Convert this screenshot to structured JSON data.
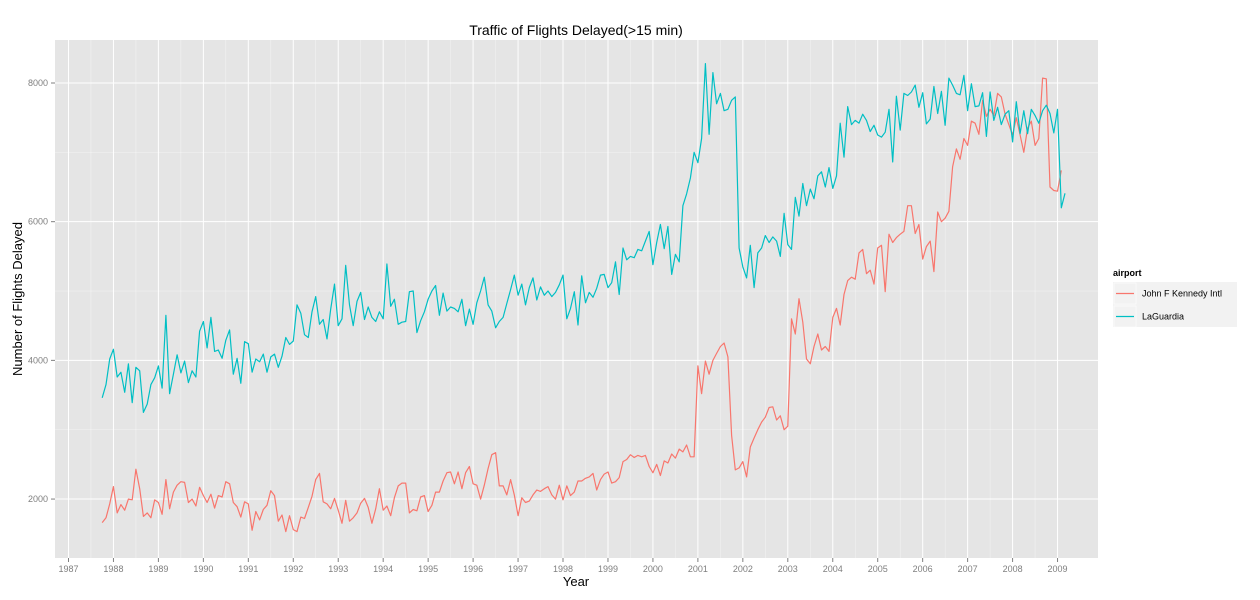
{
  "chart_data": {
    "type": "line",
    "title": "Traffic of Flights Delayed(>15 min)",
    "xlabel": "Year",
    "ylabel": "Number of Flights Delayed",
    "x_ticks": [
      "1987",
      "1988",
      "1989",
      "1990",
      "1991",
      "1992",
      "1993",
      "1994",
      "1995",
      "1996",
      "1997",
      "1998",
      "1999",
      "2000",
      "2001",
      "2002",
      "2003",
      "2004",
      "2005",
      "2006",
      "2007",
      "2008",
      "2009"
    ],
    "y_ticks": [
      2000,
      4000,
      6000,
      8000
    ],
    "xlim": [
      1986.7,
      2009.9
    ],
    "ylim": [
      1150,
      8620
    ],
    "grid": true,
    "legend": {
      "title": "airport",
      "position": "right"
    },
    "colors": {
      "John F Kennedy Intl": "#F8766D",
      "LaGuardia": "#00BFC4",
      "panel": "#E5E5E5",
      "grid": "#FFFFFF"
    },
    "series": [
      {
        "name": "John F Kennedy Intl",
        "start": "1987-10",
        "values": [
          1660,
          1730,
          1930,
          2180,
          1800,
          1920,
          1840,
          2000,
          1990,
          2430,
          2150,
          1750,
          1800,
          1730,
          1990,
          1950,
          1780,
          2280,
          1860,
          2100,
          2200,
          2250,
          2240,
          1950,
          2000,
          1900,
          2170,
          2050,
          1950,
          2070,
          1870,
          2050,
          2030,
          2250,
          2220,
          1950,
          1890,
          1740,
          1960,
          1930,
          1550,
          1820,
          1700,
          1850,
          1910,
          2120,
          2050,
          1680,
          1770,
          1530,
          1760,
          1560,
          1530,
          1740,
          1720,
          1880,
          2040,
          2280,
          2370,
          1960,
          1930,
          1860,
          2010,
          1840,
          1650,
          1980,
          1680,
          1730,
          1800,
          1940,
          2010,
          1880,
          1650,
          1860,
          2150,
          1840,
          1900,
          1760,
          2020,
          2190,
          2230,
          2230,
          1800,
          1850,
          1830,
          2030,
          2050,
          1820,
          1910,
          2100,
          2100,
          2260,
          2380,
          2390,
          2220,
          2390,
          2150,
          2380,
          2470,
          2220,
          2200,
          2000,
          2200,
          2440,
          2640,
          2670,
          2190,
          2190,
          2060,
          2280,
          2060,
          1760,
          2020,
          1950,
          1970,
          2060,
          2130,
          2110,
          2150,
          2180,
          2060,
          2000,
          2200,
          1990,
          2190,
          2050,
          2100,
          2260,
          2260,
          2300,
          2320,
          2370,
          2130,
          2280,
          2360,
          2390,
          2230,
          2250,
          2310,
          2540,
          2570,
          2640,
          2600,
          2630,
          2610,
          2630,
          2470,
          2380,
          2500,
          2340,
          2550,
          2520,
          2650,
          2590,
          2720,
          2680,
          2780,
          2610,
          2610,
          3920,
          3520,
          3990,
          3800,
          4000,
          4100,
          4200,
          4250,
          4050,
          2920,
          2420,
          2450,
          2540,
          2320,
          2750,
          2880,
          3000,
          3110,
          3180,
          3320,
          3330,
          3140,
          3200,
          3000,
          3050,
          4600,
          4380,
          4890,
          4550,
          4020,
          3950,
          4200,
          4380,
          4150,
          4200,
          4130,
          4620,
          4750,
          4510,
          4950,
          5150,
          5200,
          5170,
          5550,
          5600,
          5250,
          5300,
          5100,
          5620,
          5660,
          4990,
          5820,
          5700,
          5770,
          5820,
          5860,
          6230,
          6230,
          5830,
          5960,
          5460,
          5640,
          5720,
          5280,
          6140,
          6000,
          6050,
          6150,
          6790,
          7050,
          6900,
          7200,
          7100,
          7450,
          7420,
          7260,
          7750,
          7520,
          7620,
          7530,
          7850,
          7800,
          7550,
          7400,
          7250,
          7500,
          7250,
          7000,
          7350,
          7450,
          7100,
          7200,
          8070,
          8060,
          6500,
          6450,
          6440,
          6740
        ]
      },
      {
        "name": "LaGuardia",
        "start": "1987-10",
        "values": [
          3460,
          3650,
          4020,
          4160,
          3760,
          3830,
          3540,
          3950,
          3390,
          3900,
          3850,
          3250,
          3370,
          3650,
          3750,
          3920,
          3600,
          4650,
          3520,
          3800,
          4080,
          3820,
          3990,
          3680,
          3850,
          3760,
          4420,
          4560,
          4180,
          4620,
          4130,
          4150,
          4030,
          4290,
          4440,
          3800,
          4030,
          3670,
          4270,
          4240,
          3830,
          4020,
          3980,
          4090,
          3830,
          4050,
          4090,
          3900,
          4060,
          4330,
          4230,
          4280,
          4800,
          4680,
          4370,
          4330,
          4700,
          4920,
          4520,
          4590,
          4310,
          4740,
          5100,
          4500,
          4600,
          5370,
          4800,
          4500,
          4850,
          4980,
          4590,
          4770,
          4620,
          4560,
          4700,
          4600,
          5390,
          4780,
          4880,
          4520,
          4550,
          4560,
          4990,
          5000,
          4400,
          4570,
          4700,
          4880,
          5000,
          5080,
          4650,
          4970,
          4710,
          4770,
          4750,
          4700,
          4880,
          4500,
          4740,
          4520,
          4830,
          5000,
          5200,
          4800,
          4710,
          4470,
          4560,
          4620,
          4820,
          5020,
          5230,
          4940,
          5100,
          4800,
          5050,
          5190,
          4870,
          5060,
          4940,
          5000,
          4920,
          4980,
          5090,
          5230,
          4600,
          4750,
          4990,
          4510,
          5220,
          4830,
          4980,
          4910,
          5040,
          5230,
          5240,
          5050,
          5120,
          5420,
          4950,
          5620,
          5450,
          5500,
          5480,
          5600,
          5580,
          5720,
          5860,
          5380,
          5700,
          5960,
          5610,
          5930,
          5240,
          5530,
          5420,
          6230,
          6400,
          6630,
          7000,
          6850,
          7200,
          8280,
          7260,
          8150,
          7700,
          7850,
          7600,
          7620,
          7750,
          7800,
          5620,
          5350,
          5190,
          5660,
          5050,
          5550,
          5620,
          5800,
          5700,
          5780,
          5720,
          5500,
          6120,
          5670,
          5600,
          6350,
          6080,
          6550,
          6230,
          6470,
          6330,
          6660,
          6720,
          6500,
          6780,
          6480,
          6660,
          7420,
          6930,
          7660,
          7400,
          7460,
          7420,
          7550,
          7460,
          7300,
          7390,
          7250,
          7220,
          7290,
          7620,
          6860,
          7810,
          7320,
          7850,
          7820,
          7870,
          7970,
          7650,
          7860,
          7410,
          7480,
          7950,
          7560,
          7880,
          7390,
          8070,
          7970,
          7850,
          7830,
          8110,
          7600,
          7990,
          7660,
          7670,
          7860,
          7230,
          7870,
          7460,
          7650,
          7400,
          7550,
          7600,
          7150,
          7730,
          7270,
          7600,
          7270,
          7620,
          7530,
          7420,
          7600,
          7680,
          7560,
          7280,
          7620,
          6200,
          6410
        ]
      }
    ]
  }
}
